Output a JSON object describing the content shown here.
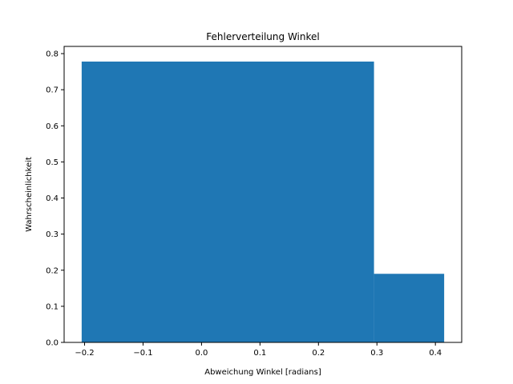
{
  "chart_data": {
    "type": "bar",
    "title": "Fehlerverteilung Winkel",
    "xlabel": "Abweichung Winkel [radians]",
    "ylabel": "Wahrscheinlichkeit",
    "xlim": [
      -0.235,
      0.445
    ],
    "ylim": [
      0,
      0.82
    ],
    "grid": false,
    "bar_color": "#1f77b4",
    "bins": [
      {
        "x0": -0.205,
        "x1": 0.295,
        "value": 0.778
      },
      {
        "x0": 0.295,
        "x1": 0.415,
        "value": 0.19
      }
    ],
    "xticks": [
      {
        "value": -0.2,
        "label": "−0.2"
      },
      {
        "value": -0.1,
        "label": "−0.1"
      },
      {
        "value": 0.0,
        "label": "0.0"
      },
      {
        "value": 0.1,
        "label": "0.1"
      },
      {
        "value": 0.2,
        "label": "0.2"
      },
      {
        "value": 0.3,
        "label": "0.3"
      },
      {
        "value": 0.4,
        "label": "0.4"
      }
    ],
    "yticks": [
      {
        "value": 0.0,
        "label": "0.0"
      },
      {
        "value": 0.1,
        "label": "0.1"
      },
      {
        "value": 0.2,
        "label": "0.2"
      },
      {
        "value": 0.3,
        "label": "0.3"
      },
      {
        "value": 0.4,
        "label": "0.4"
      },
      {
        "value": 0.5,
        "label": "0.5"
      },
      {
        "value": 0.6,
        "label": "0.6"
      },
      {
        "value": 0.7,
        "label": "0.7"
      },
      {
        "value": 0.8,
        "label": "0.8"
      }
    ]
  }
}
